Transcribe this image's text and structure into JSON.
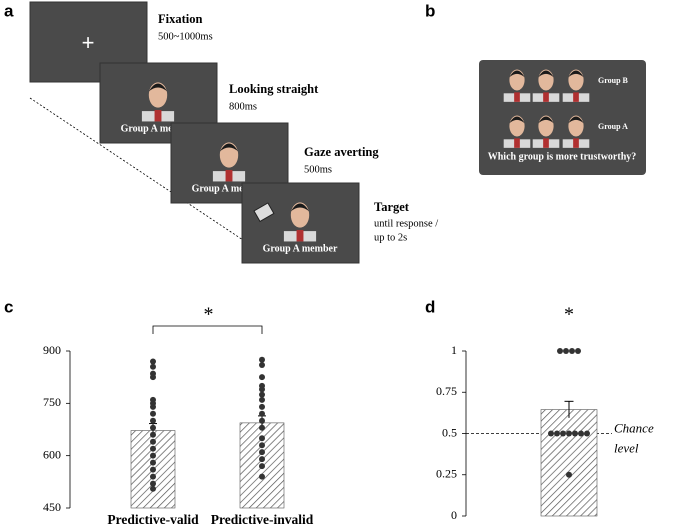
{
  "panels": {
    "a": {
      "label": "a",
      "fixation_symbol": "+",
      "screens": [
        {
          "title": "Fixation",
          "duration": "500~1000ms"
        },
        {
          "title": "Looking straight",
          "duration": "800ms",
          "caption": "Group A member"
        },
        {
          "title": "Gaze averting",
          "duration": "500ms",
          "caption": "Group A member"
        },
        {
          "title": "Target",
          "duration": [
            "until response /",
            "up to 2s"
          ],
          "caption": "Group A member"
        }
      ]
    },
    "b": {
      "label": "b",
      "groups": [
        "Group B",
        "Group A"
      ],
      "question": "Which group is more trustworthy?"
    },
    "c": {
      "label": "c"
    },
    "d": {
      "label": "d"
    }
  },
  "chart_data": [
    {
      "type": "bar",
      "categories": [
        "Predictive-valid",
        "Predictive-invalid"
      ],
      "values": [
        672,
        694
      ],
      "errors": [
        20,
        20
      ],
      "points": [
        [
          870,
          855,
          835,
          825,
          760,
          750,
          740,
          720,
          700,
          680,
          660,
          640,
          620,
          600,
          580,
          560,
          540,
          520,
          505
        ],
        [
          875,
          860,
          825,
          800,
          790,
          775,
          760,
          740,
          720,
          700,
          680,
          650,
          630,
          610,
          590,
          570,
          540
        ]
      ],
      "ylim": [
        450,
        900
      ],
      "yticks": [
        450,
        600,
        750,
        900
      ],
      "annotation": "*"
    },
    {
      "type": "bar",
      "categories": [
        null
      ],
      "values": [
        0.645
      ],
      "errors": [
        0.05
      ],
      "points": [
        [
          1,
          1,
          1,
          1,
          0.5,
          0.5,
          0.5,
          0.5,
          0.5,
          0.5,
          0.5,
          0.25
        ]
      ],
      "ylim": [
        0,
        1
      ],
      "yticks": [
        0,
        0.25,
        0.5,
        0.75,
        1
      ],
      "annotation": "*",
      "reference_line": {
        "value": 0.5,
        "label": [
          "Chance",
          "level"
        ]
      }
    }
  ]
}
